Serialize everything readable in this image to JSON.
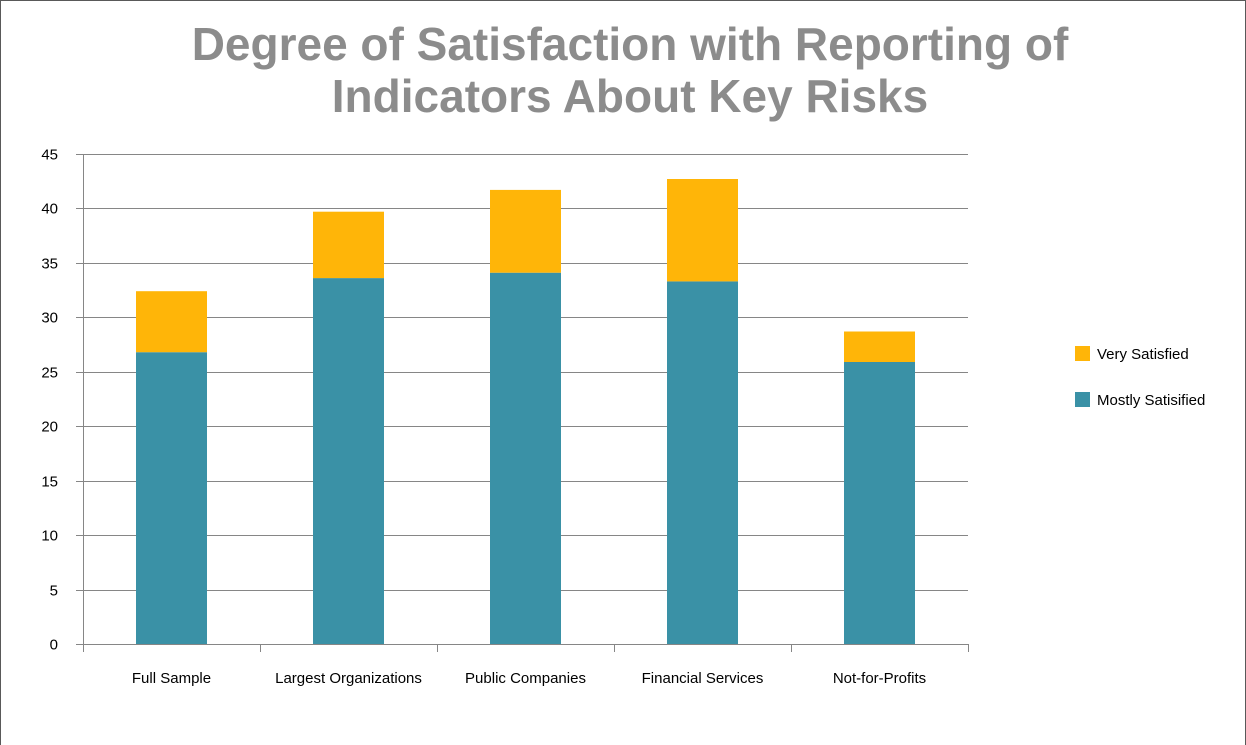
{
  "chart_data": {
    "type": "bar",
    "stacked": true,
    "title": "Degree of Satisfaction with Reporting of Indicators About Key Risks",
    "title_lines": [
      "Degree of Satisfaction with Reporting of",
      "Indicators About Key Risks"
    ],
    "xlabel": "",
    "ylabel": "",
    "categories": [
      "Full Sample",
      "Largest Organizations",
      "Public Companies",
      "Financial Services",
      "Not-for-Profits"
    ],
    "series": [
      {
        "name": "Mostly Satisified",
        "color": "#3a91a6",
        "values": [
          26.8,
          33.6,
          34.1,
          33.3,
          25.9
        ]
      },
      {
        "name": "Very Satisfied",
        "color": "#ffb508",
        "values": [
          5.6,
          6.1,
          7.6,
          9.4,
          2.8
        ]
      }
    ],
    "ylim": [
      0,
      45
    ],
    "yticks": [
      0,
      5,
      10,
      15,
      20,
      25,
      30,
      35,
      40,
      45
    ],
    "grid": true,
    "legend_position": "right",
    "legend_order": [
      "Very Satisfied",
      "Mostly Satisified"
    ]
  }
}
